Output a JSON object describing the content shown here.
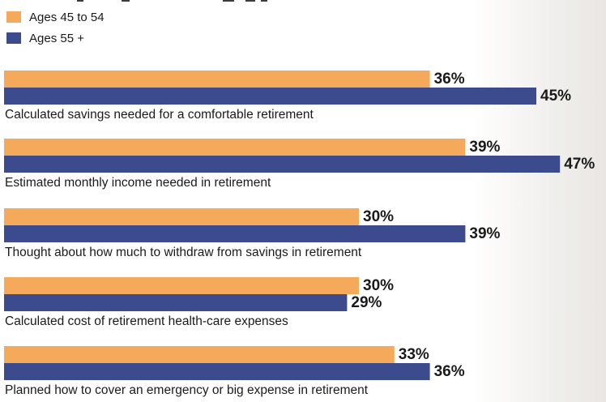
{
  "colors": {
    "ages_45_54": "#f5a95a",
    "ages_55_plus": "#3c4b8e",
    "text": "#1a1a1a"
  },
  "legend": [
    {
      "label": "Ages 45 to 54",
      "color": "#f5a95a"
    },
    {
      "label": "Ages 55 +",
      "color": "#3c4b8e"
    }
  ],
  "chart_data": {
    "type": "bar",
    "orientation": "horizontal",
    "categories": [
      "Calculated savings needed for a comfortable retirement",
      "Estimated monthly income needed in retirement",
      "Thought about how much to withdraw from savings in retirement",
      "Calculated cost of retirement health-care expenses",
      "Planned how to cover an emergency or big expense in retirement"
    ],
    "series": [
      {
        "name": "Ages 45 to 54",
        "values": [
          36,
          39,
          30,
          30,
          33
        ],
        "value_labels": [
          "36%",
          "39%",
          "30%",
          "30%",
          "33%"
        ]
      },
      {
        "name": "Ages 55 +",
        "values": [
          45,
          47,
          39,
          29,
          36
        ],
        "value_labels": [
          "45%",
          "47%",
          "39%",
          "29%",
          "36%"
        ]
      }
    ],
    "xlim": [
      0,
      50
    ],
    "legend_position": "top-left",
    "grid": false
  }
}
